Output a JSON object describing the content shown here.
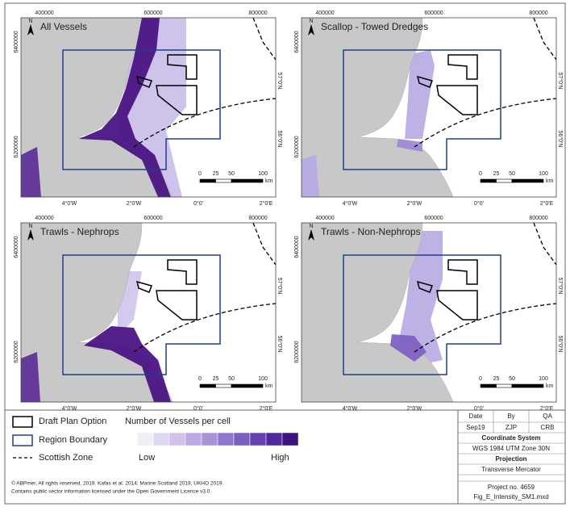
{
  "panels": [
    {
      "title": "All Vessels"
    },
    {
      "title": "Scallop - Towed Dredges"
    },
    {
      "title": "Trawls - Nephrops"
    },
    {
      "title": "Trawls - Non-Nephrops"
    }
  ],
  "map_frame": {
    "top_labels": [
      "400000",
      "600000",
      "800000"
    ],
    "left_labels": [
      "6400000",
      "6200000"
    ],
    "bottom_labels": [
      "4°0'W",
      "2°0'W",
      "0°0'",
      "2°0'E"
    ],
    "right_labels": [
      "57°0'N",
      "56°0'N"
    ],
    "north_label": "N",
    "scale_labels": [
      "0",
      "25",
      "50",
      "100"
    ],
    "scale_unit": "km"
  },
  "legend": {
    "items": [
      "Draft Plan Option",
      "Region Boundary",
      "Scottish Zone"
    ],
    "ramp_title": "Number of Vessels per cell",
    "ramp_low": "Low",
    "ramp_high": "High"
  },
  "info": {
    "header": [
      "Date",
      "By",
      "QA"
    ],
    "row": [
      "Sep19",
      "ZJP",
      "CRB"
    ],
    "coord_label": "Coordinate System",
    "coord": "WGS 1984 UTM Zone 30N",
    "proj_label": "Projection",
    "proj": "Transverse Mercator",
    "project": "Project no. 4659",
    "file": "Fig_E_Intensity_SM1.mxd"
  },
  "credits": [
    "© ABPmer, All rights reserved, 2019. Kafas et al. 2014; Marine Scotland 2019, UKHO 2019.",
    "Contains public sector information licensed under the Open Government Licence v3.0."
  ]
}
